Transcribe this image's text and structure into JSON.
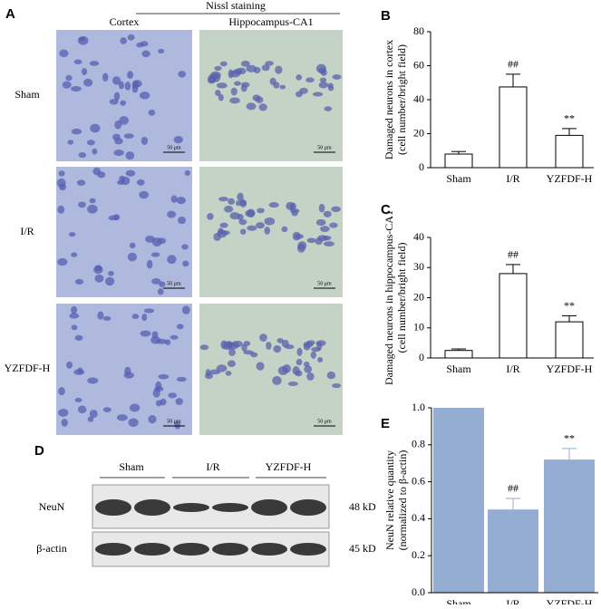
{
  "figure": {
    "panel_labels": [
      "A",
      "B",
      "C",
      "D",
      "E"
    ]
  },
  "nissl": {
    "title": "Nissl staining",
    "columns": [
      "Cortex",
      "Hippocampus-CA1"
    ],
    "rows": [
      "Sham",
      "I/R",
      "YZFDF-H"
    ],
    "scale_bar": "50 μm"
  },
  "western_blot": {
    "groups": [
      "Sham",
      "I/R",
      "YZFDF-H"
    ],
    "proteins": [
      {
        "name": "NeuN",
        "size": "48 kD"
      },
      {
        "name": "β-actin",
        "size": "45 kD"
      }
    ]
  },
  "chart_data": [
    {
      "type": "bar",
      "y_label": [
        "Damaged neurons  in cortex",
        "(cell number/bright field)"
      ],
      "categories": [
        "Sham",
        "I/R",
        "YZFDF-H"
      ],
      "values": [
        8,
        47.5,
        19
      ],
      "errors": [
        1.5,
        7.5,
        4
      ],
      "annotations": [
        null,
        "##",
        "**"
      ],
      "color": "#ffffff",
      "edgecolor": "#000000",
      "ylim": [
        0,
        80
      ],
      "yticks": [
        0,
        20,
        40,
        60,
        80
      ]
    },
    {
      "type": "bar",
      "y_label": [
        "Damaged neurons  in hippocampus-CA1",
        "(cell number/bright field)"
      ],
      "categories": [
        "Sham",
        "I/R",
        "YZFDF-H"
      ],
      "values": [
        2.5,
        28,
        12
      ],
      "errors": [
        0.5,
        3,
        2
      ],
      "annotations": [
        null,
        "##",
        "**"
      ],
      "color": "#ffffff",
      "edgecolor": "#000000",
      "ylim": [
        0,
        40
      ],
      "yticks": [
        0,
        10,
        20,
        30,
        40
      ]
    },
    {
      "type": "bar",
      "y_label": [
        "NeuN relative quantity",
        "(normalized to β-actin)"
      ],
      "categories": [
        "Sham",
        "I/R",
        "YZFDF-H"
      ],
      "values": [
        1.0,
        0.45,
        0.72
      ],
      "errors": [
        null,
        0.06,
        0.06
      ],
      "annotations": [
        null,
        "##",
        "**"
      ],
      "color": "#95acd3",
      "ylim": [
        0,
        1.0
      ],
      "yticks": [
        {
          "value": 0,
          "label": "0.0"
        },
        0.2,
        0.4,
        0.6,
        0.8,
        {
          "value": 1.0,
          "label": "1.0"
        }
      ]
    }
  ]
}
